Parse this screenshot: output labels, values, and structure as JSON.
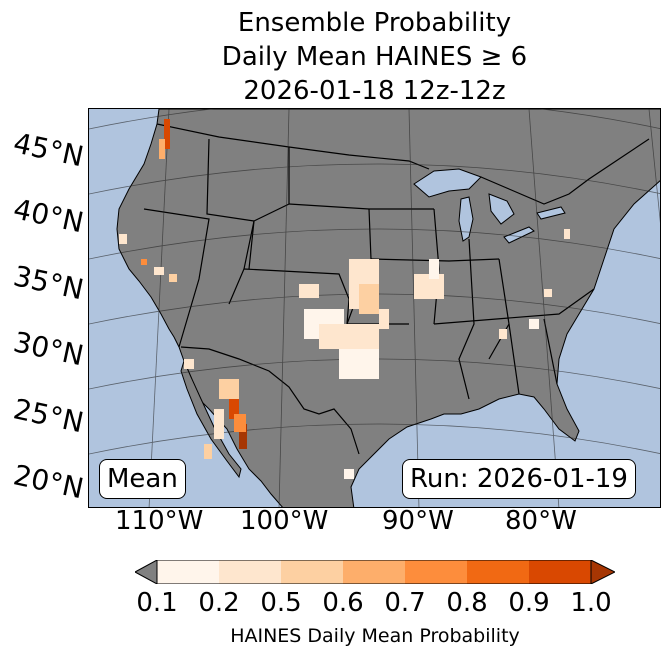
{
  "title": {
    "line1": "Ensemble Probability",
    "line2": "Daily Mean HAINES ≥ 6",
    "line3": "2026-01-18 12z-12z"
  },
  "map": {
    "latitude_labels": [
      "45°N",
      "40°N",
      "35°N",
      "30°N",
      "25°N",
      "20°N"
    ],
    "longitude_labels": [
      "110°W",
      "100°W",
      "90°W",
      "80°W"
    ],
    "mean_label": "Mean",
    "run_label": "Run: 2026-01-19",
    "colors": {
      "ocean": "#b0c4de",
      "land": "#808080",
      "border": "#000000"
    }
  },
  "colorbar": {
    "ticks": [
      "0.1",
      "0.2",
      "0.5",
      "0.6",
      "0.7",
      "0.8",
      "0.9",
      "1.0"
    ],
    "label": "HAINES Daily Mean Probability",
    "under_color": "#808080",
    "colors": [
      "#fff5eb",
      "#fee6ce",
      "#fdd0a2",
      "#fdae6b",
      "#fd8d3c",
      "#f16913",
      "#d94801",
      "#a63603"
    ]
  }
}
